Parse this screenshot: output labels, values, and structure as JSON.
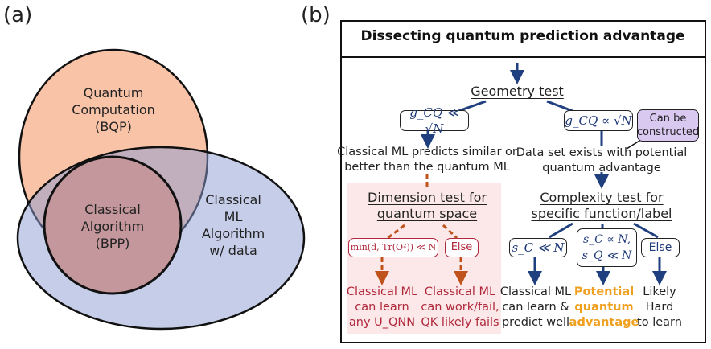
{
  "panel_a": {
    "label": "(a)",
    "quantum": [
      "Quantum",
      "Computation",
      "(BQP)"
    ],
    "classical_alg": [
      "Classical",
      "Algorithm",
      "(BPP)"
    ],
    "classical_ml": [
      "Classical",
      "ML",
      "Algorithm",
      "w/ data"
    ]
  },
  "panel_b": {
    "label": "(b)",
    "title": "Dissecting quantum prediction advantage",
    "geometry_test": "Geometry test",
    "g_small": "g_CQ ≪ √N",
    "g_prop": "g_CQ ∝ √N",
    "can_be_constructed": [
      "Can be",
      "constructed"
    ],
    "left_result": [
      "Classical ML predicts similar or",
      "better than the quantum ML"
    ],
    "right_result": [
      "Data set exists with potential",
      "quantum advantage"
    ],
    "dimension_test": [
      "Dimension test for",
      "quantum space"
    ],
    "complexity_test": [
      "Complexity test for",
      "specific function/label"
    ],
    "dim_cond": "min(d, Tr(O²)) ≪ N",
    "dim_else": "Else",
    "comp_cond1": "s_C ≪ N",
    "comp_cond2": [
      "s_C ∝ N,",
      "s_Q ≪ N"
    ],
    "comp_else": "Else",
    "out_dim1": [
      "Classical ML",
      "can learn",
      "any U_QNN"
    ],
    "out_dim2": [
      "Classical ML",
      "can work/fail,",
      "QK likely fails"
    ],
    "out_c1": [
      "Classical ML",
      "can learn &",
      "predict well"
    ],
    "out_c2": [
      "Potential",
      "quantum",
      "advantage"
    ],
    "out_c3": [
      "Likely",
      "Hard",
      "to learn"
    ]
  },
  "colors": {
    "blue": "#1f3f7f",
    "orange_arrow": "#c0531c",
    "red_text": "#b0283c",
    "advantage": "#f0a020",
    "pink_bg": "#fce8e8",
    "purple": "#d9c9f1"
  }
}
